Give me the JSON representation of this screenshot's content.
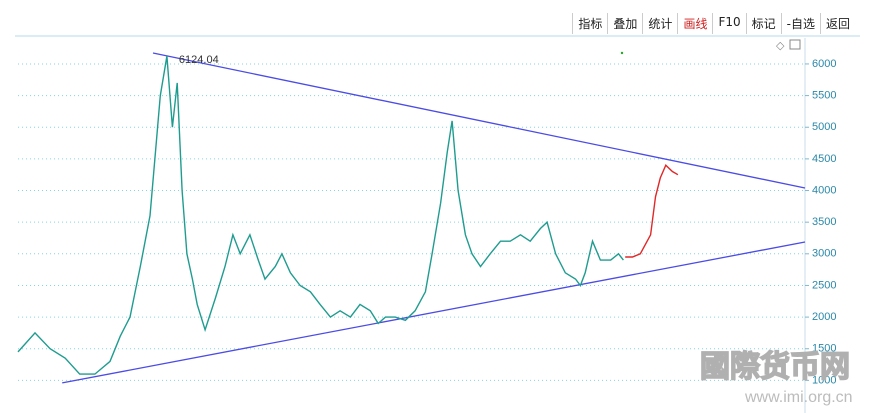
{
  "toolbar": {
    "buttons": [
      "指标",
      "叠加",
      "统计",
      "画线",
      "F10",
      "标记",
      "-自选",
      "返回"
    ],
    "active": 3
  },
  "chart_data": {
    "type": "line",
    "annotation": "6124.04",
    "xlim": [
      0,
      130
    ],
    "ylim": [
      690,
      6410
    ],
    "yticks": [
      1000,
      1500,
      2000,
      2500,
      3000,
      3500,
      4000,
      4500,
      5000,
      5500,
      6000
    ],
    "grid": true,
    "series": [
      {
        "color": "#1f9c90",
        "x": [
          0,
          2.8,
          5.3,
          7.8,
          10.2,
          12.7,
          15.2,
          16.9,
          18.5,
          20.2,
          21.8,
          23.5,
          24.6,
          25.5,
          26.3,
          27.1,
          27.9,
          28.8,
          29.6,
          30.9,
          32.6,
          34.2,
          35.5,
          36.7,
          38.3,
          39.7,
          40.8,
          42.5,
          43.6,
          45,
          46.6,
          48.3,
          49.9,
          51.6,
          53.2,
          54.9,
          56.5,
          58.2,
          59.5,
          60.7,
          62.3,
          64,
          65.6,
          67.3,
          68.4,
          69.8,
          70.9,
          71.7,
          72.7,
          73.9,
          75,
          76.4,
          78,
          79.7,
          81.3,
          83,
          84.6,
          86.3,
          87.4,
          88.8,
          90.4,
          92.1,
          92.9,
          93.7,
          94.9,
          96.2,
          97.9,
          99.2,
          100
        ],
        "values": [
          1450,
          1750,
          1500,
          1350,
          1100,
          1100,
          1300,
          1700,
          2000,
          2800,
          3600,
          5500,
          6124,
          5000,
          5700,
          4000,
          3000,
          2600,
          2200,
          1800,
          2300,
          2800,
          3300,
          3000,
          3300,
          2900,
          2600,
          2800,
          3000,
          2700,
          2500,
          2400,
          2200,
          2000,
          2100,
          2000,
          2200,
          2100,
          1900,
          2000,
          2000,
          1950,
          2100,
          2400,
          3000,
          3800,
          4600,
          5100,
          4000,
          3300,
          3000,
          2800,
          3000,
          3200,
          3200,
          3300,
          3200,
          3400,
          3500,
          3000,
          2700,
          2600,
          2500,
          2700,
          3200,
          2900,
          2900,
          3000,
          2900
        ]
      },
      {
        "color": "#e02828",
        "x": [
          100.3,
          101.5,
          102.8,
          104.5,
          105.3,
          106.1,
          107,
          108.1,
          109
        ],
        "values": [
          2950,
          2950,
          3000,
          3300,
          3900,
          4200,
          4400,
          4300,
          4250
        ]
      }
    ],
    "trendlines": [
      {
        "color": "#4b4be6",
        "x": [
          22.3,
          130
        ],
        "values": [
          6173,
          4040
        ]
      },
      {
        "color": "#4b4be6",
        "x": [
          7.3,
          130
        ],
        "values": [
          960,
          3187
        ]
      }
    ]
  },
  "watermark": {
    "title": "國際货币网",
    "url": "www.imi.org.cn"
  }
}
